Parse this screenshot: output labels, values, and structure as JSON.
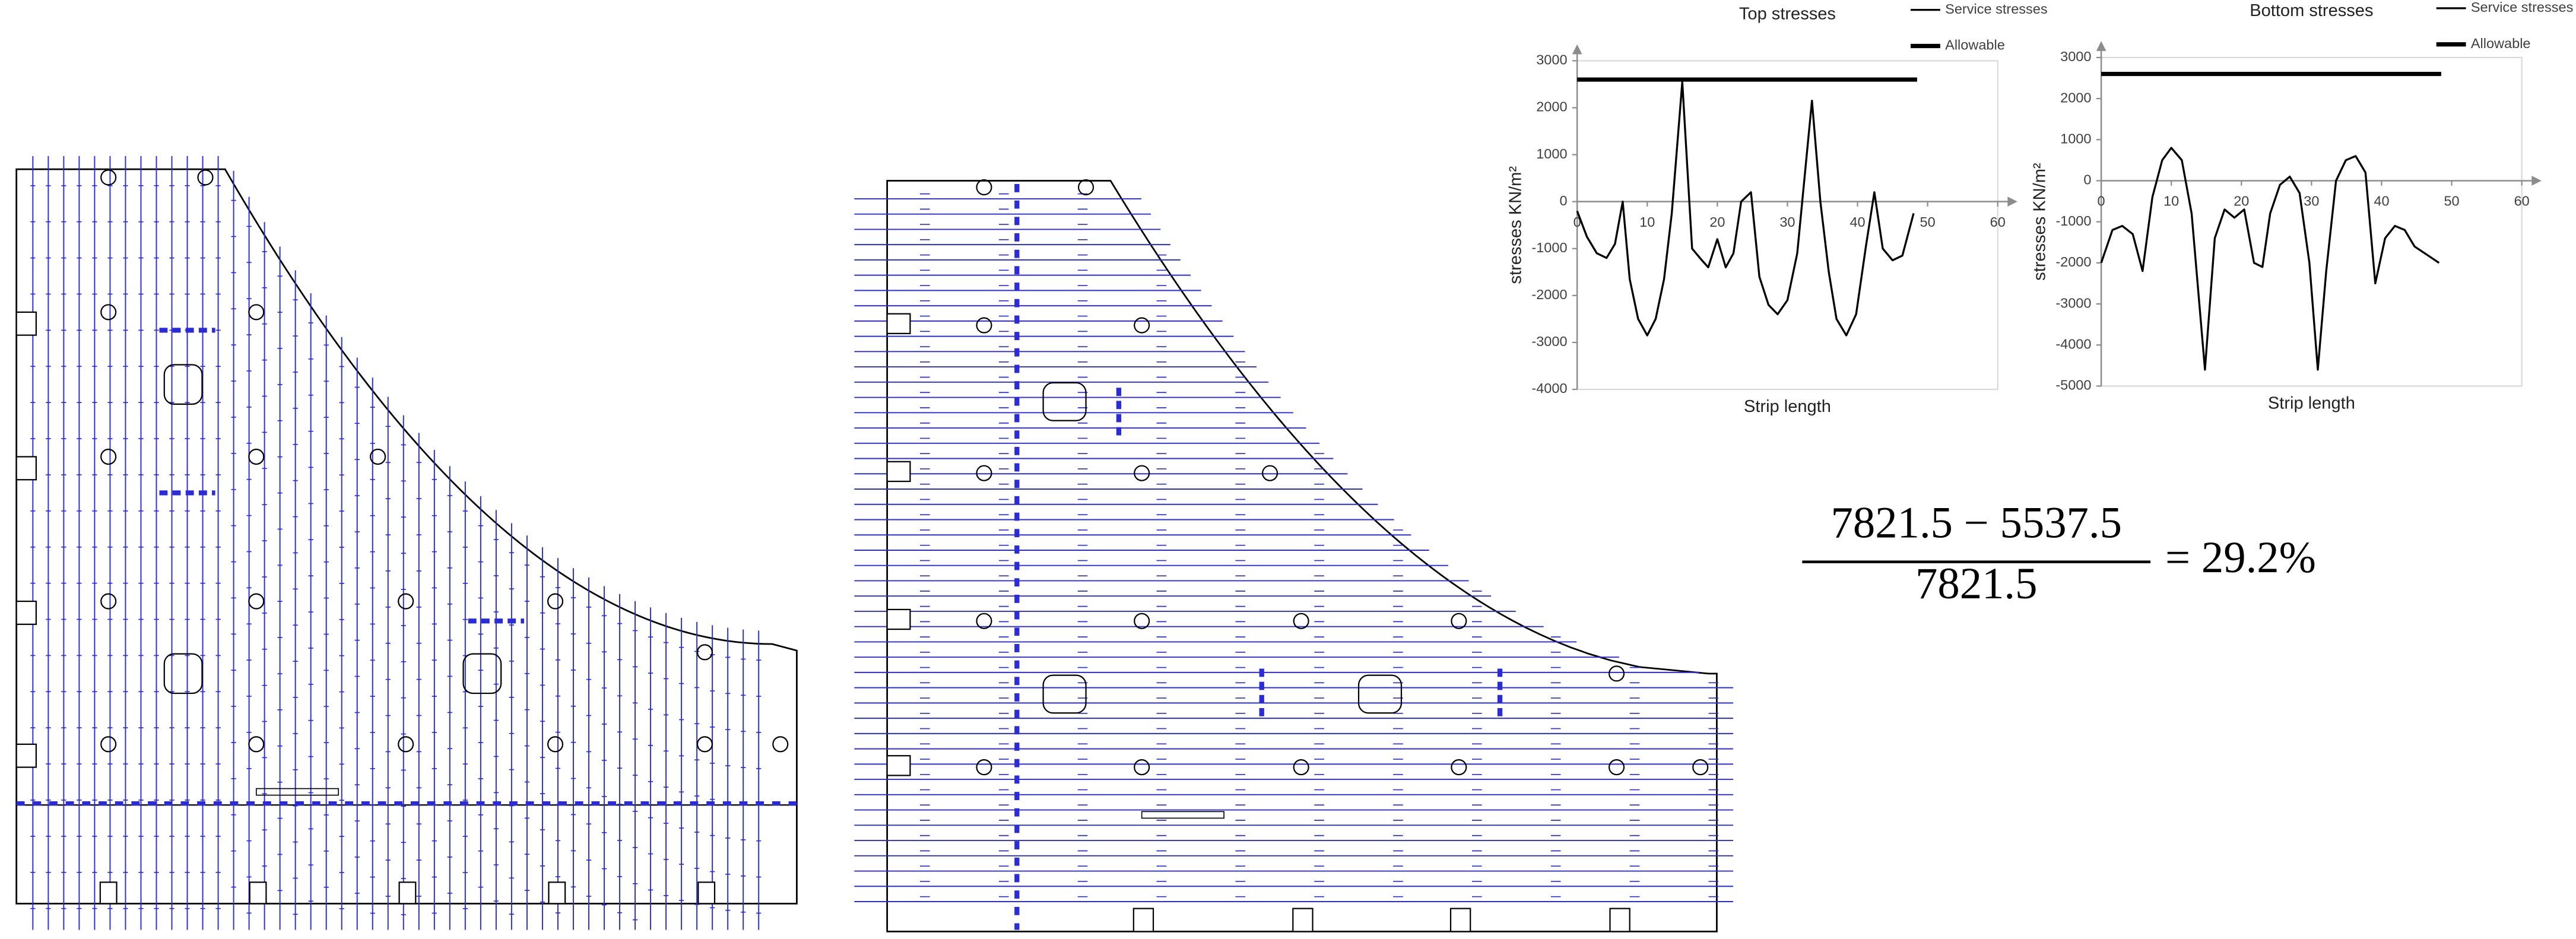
{
  "chart_data": [
    {
      "type": "line",
      "title": "Top stresses",
      "x_label": "Strip length",
      "y_label": "stresses KN/m²",
      "xlim": [
        0,
        60
      ],
      "xticks": [
        0,
        10,
        20,
        30,
        40,
        50,
        60
      ],
      "ylim": [
        -4000,
        3000
      ],
      "yticks": [
        -4000,
        -3000,
        -2000,
        -1000,
        0,
        1000,
        2000,
        3000
      ],
      "series": [
        {
          "name": "Service stresses",
          "color": "#000000",
          "line_width": 1.2,
          "x": [
            0,
            1.4,
            2.8,
            4.2,
            5.4,
            6.5,
            7.5,
            8.7,
            10,
            11.2,
            12.4,
            13.5,
            15,
            16.4,
            17.8,
            18.7,
            20,
            21.2,
            22.3,
            23.4,
            24.8,
            26,
            27.3,
            28.6,
            30,
            31.4,
            33.5,
            34.7,
            35.9,
            37,
            38.4,
            39.8,
            41.2,
            42.4,
            43.6,
            45,
            46.4,
            48
          ],
          "values": [
            -200,
            -750,
            -1100,
            -1200,
            -900,
            0,
            -1650,
            -2500,
            -2850,
            -2500,
            -1650,
            -250,
            2550,
            -1000,
            -1250,
            -1400,
            -800,
            -1400,
            -1100,
            0,
            200,
            -1600,
            -2200,
            -2400,
            -2100,
            -1100,
            2150,
            0,
            -1500,
            -2500,
            -2850,
            -2400,
            -950,
            200,
            -1000,
            -1250,
            -1150,
            -250
          ]
        },
        {
          "name": "Allowable",
          "color": "#000000",
          "line_width": 2.6,
          "x": [
            0,
            48.5
          ],
          "values": [
            2600,
            2600
          ]
        }
      ]
    },
    {
      "type": "line",
      "title": "Bottom stresses",
      "x_label": "Strip length",
      "y_label": "stresses KN/m²",
      "xlim": [
        0,
        60
      ],
      "xticks": [
        0,
        10,
        20,
        30,
        40,
        50,
        60
      ],
      "ylim": [
        -5000,
        3000
      ],
      "yticks": [
        -5000,
        -4000,
        -3000,
        -2000,
        -1000,
        0,
        1000,
        2000,
        3000
      ],
      "series": [
        {
          "name": "Service stresses",
          "color": "#000000",
          "line_width": 1.2,
          "x": [
            0,
            1.6,
            3,
            4.5,
            5.9,
            7.3,
            8.7,
            10,
            11.5,
            12.9,
            14.8,
            16.2,
            17.6,
            19,
            20.4,
            21.8,
            23,
            24.1,
            25.5,
            26.9,
            28.3,
            29.7,
            30.9,
            32.1,
            33.5,
            34.9,
            36.3,
            37.7,
            39.1,
            40.5,
            41.9,
            43.3,
            44.7,
            48.2
          ],
          "values": [
            -2000,
            -1200,
            -1100,
            -1300,
            -2200,
            -400,
            500,
            800,
            500,
            -800,
            -4600,
            -1400,
            -700,
            -900,
            -700,
            -2000,
            -2100,
            -800,
            -100,
            100,
            -300,
            -2000,
            -4600,
            -2200,
            0,
            500,
            600,
            200,
            -2500,
            -1400,
            -1100,
            -1200,
            -1600,
            -2000
          ]
        },
        {
          "name": "Allowable",
          "color": "#000000",
          "line_width": 2.6,
          "x": [
            0,
            48.5
          ],
          "values": [
            2600,
            2600
          ]
        }
      ]
    }
  ],
  "equation": {
    "numerator": "7821.5 − 5537.5",
    "denominator": "7821.5",
    "result": "= 29.2%"
  }
}
